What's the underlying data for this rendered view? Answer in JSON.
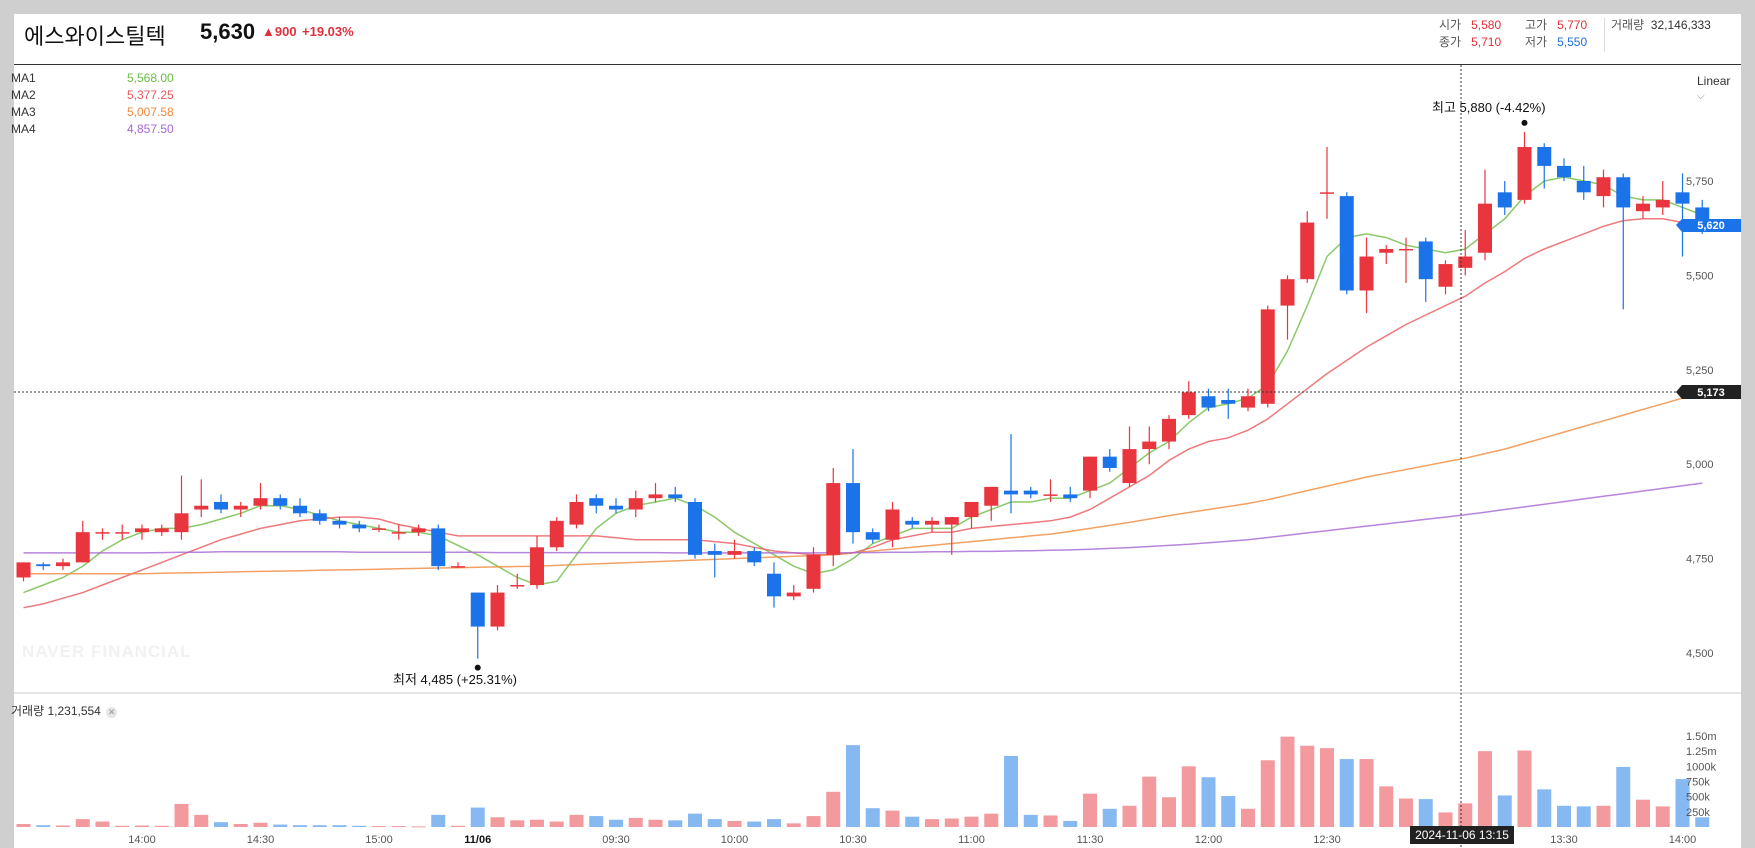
{
  "header": {
    "stock_name": "에스와이스틸텍",
    "price": "5,630",
    "change": "▲900",
    "change_pct": "+19.03%",
    "open_label": "시가",
    "open": "5,580",
    "high_label": "고가",
    "high": "5,770",
    "volume_label": "거래량",
    "volume": "32,146,333",
    "close_label": "종가",
    "close": "5,710",
    "low_label": "저가",
    "low": "5,550"
  },
  "legend": {
    "ma": [
      {
        "name": "MA1",
        "value": "5,568.00",
        "color": "#6dbb45"
      },
      {
        "name": "MA2",
        "value": "5,377.25",
        "color": "#e9575b"
      },
      {
        "name": "MA3",
        "value": "5,007.58",
        "color": "#f08a3c"
      },
      {
        "name": "MA4",
        "value": "4,857.50",
        "color": "#a667d4"
      }
    ]
  },
  "scale_type": "Linear",
  "volume_panel": {
    "label": "거래량",
    "value": "1,231,554"
  },
  "watermark": "NAVER FINANCIAL",
  "annotations": {
    "high": "최고 5,880 (-4.42%)",
    "low": "최저 4,485 (+25.31%)"
  },
  "badges": {
    "last_price": "5,620",
    "crosshair_price": "5,173",
    "crosshair_time": "2024-11-06 13:15"
  },
  "colors": {
    "up": "#e8353e",
    "down": "#1a73e8",
    "up_volume": "#f29a9d",
    "down_volume": "#86b9f2"
  },
  "chart_data": {
    "type": "candlestick",
    "price_axis": {
      "ticks": [
        4500,
        4750,
        5000,
        5250,
        5500,
        5750
      ],
      "tick_labels": [
        "4,500",
        "4,750",
        "5,000",
        "5,250",
        "5,500",
        "5,750"
      ]
    },
    "volume_axis": {
      "ticks": [
        250000,
        500000,
        750000,
        1000000,
        1250000,
        1500000
      ],
      "tick_labels": [
        "250k",
        "500k",
        "750k",
        "1000k",
        "1.25m",
        "1.50m"
      ]
    },
    "time_axis": [
      {
        "i": 6,
        "label": "14:00",
        "bold": false
      },
      {
        "i": 12,
        "label": "14:30",
        "bold": false
      },
      {
        "i": 18,
        "label": "15:00",
        "bold": false
      },
      {
        "i": 23,
        "label": "11/06",
        "bold": true
      },
      {
        "i": 30,
        "label": "09:30",
        "bold": false
      },
      {
        "i": 36,
        "label": "10:00",
        "bold": false
      },
      {
        "i": 42,
        "label": "10:30",
        "bold": false
      },
      {
        "i": 48,
        "label": "11:00",
        "bold": false
      },
      {
        "i": 54,
        "label": "11:30",
        "bold": false
      },
      {
        "i": 60,
        "label": "12:00",
        "bold": false
      },
      {
        "i": 66,
        "label": "12:30",
        "bold": false
      },
      {
        "i": 72,
        "label": "13:00",
        "bold": false
      },
      {
        "i": 78,
        "label": "13:30",
        "bold": false
      },
      {
        "i": 84,
        "label": "14:00",
        "bold": false
      }
    ],
    "candles": [
      [
        4700,
        4740,
        4690,
        4740,
        50000
      ],
      [
        4735,
        4740,
        4720,
        4730,
        30000
      ],
      [
        4730,
        4750,
        4720,
        4740,
        25000
      ],
      [
        4740,
        4850,
        4740,
        4820,
        130000
      ],
      [
        4820,
        4830,
        4800,
        4820,
        90000
      ],
      [
        4820,
        4840,
        4800,
        4820,
        20000
      ],
      [
        4820,
        4840,
        4800,
        4830,
        25000
      ],
      [
        4820,
        4840,
        4810,
        4830,
        20000
      ],
      [
        4820,
        4970,
        4800,
        4870,
        380000
      ],
      [
        4880,
        4960,
        4860,
        4890,
        200000
      ],
      [
        4900,
        4920,
        4870,
        4880,
        80000
      ],
      [
        4880,
        4900,
        4860,
        4890,
        50000
      ],
      [
        4890,
        4950,
        4880,
        4910,
        70000
      ],
      [
        4910,
        4920,
        4880,
        4890,
        40000
      ],
      [
        4890,
        4910,
        4860,
        4870,
        30000
      ],
      [
        4870,
        4880,
        4840,
        4850,
        30000
      ],
      [
        4850,
        4860,
        4830,
        4840,
        30000
      ],
      [
        4840,
        4850,
        4820,
        4830,
        20000
      ],
      [
        4830,
        4840,
        4820,
        4830,
        15000
      ],
      [
        4820,
        4840,
        4800,
        4820,
        15000
      ],
      [
        4820,
        4840,
        4810,
        4830,
        10000
      ],
      [
        4830,
        4840,
        4720,
        4730,
        200000
      ],
      [
        4730,
        4740,
        4725,
        4730,
        20000
      ],
      [
        4660,
        4660,
        4485,
        4570,
        320000
      ],
      [
        4570,
        4680,
        4560,
        4660,
        160000
      ],
      [
        4680,
        4710,
        4670,
        4680,
        110000
      ],
      [
        4680,
        4810,
        4670,
        4780,
        120000
      ],
      [
        4780,
        4860,
        4770,
        4850,
        90000
      ],
      [
        4840,
        4920,
        4830,
        4900,
        200000
      ],
      [
        4910,
        4920,
        4870,
        4890,
        180000
      ],
      [
        4890,
        4910,
        4870,
        4880,
        120000
      ],
      [
        4880,
        4930,
        4860,
        4910,
        150000
      ],
      [
        4910,
        4950,
        4900,
        4920,
        120000
      ],
      [
        4920,
        4940,
        4900,
        4910,
        110000
      ],
      [
        4900,
        4910,
        4750,
        4760,
        220000
      ],
      [
        4770,
        4790,
        4700,
        4760,
        130000
      ],
      [
        4760,
        4800,
        4750,
        4770,
        100000
      ],
      [
        4770,
        4780,
        4730,
        4740,
        90000
      ],
      [
        4710,
        4740,
        4620,
        4650,
        130000
      ],
      [
        4650,
        4680,
        4640,
        4660,
        60000
      ],
      [
        4670,
        4780,
        4660,
        4760,
        180000
      ],
      [
        4760,
        4990,
        4730,
        4950,
        580000
      ],
      [
        4950,
        5040,
        4790,
        4820,
        1350000
      ],
      [
        4820,
        4830,
        4790,
        4800,
        310000
      ],
      [
        4800,
        4900,
        4780,
        4880,
        270000
      ],
      [
        4850,
        4860,
        4830,
        4840,
        170000
      ],
      [
        4840,
        4860,
        4820,
        4850,
        130000
      ],
      [
        4840,
        4860,
        4760,
        4860,
        140000
      ],
      [
        4860,
        4900,
        4830,
        4900,
        170000
      ],
      [
        4890,
        4940,
        4850,
        4940,
        220000
      ],
      [
        4930,
        5080,
        4870,
        4920,
        1170000
      ],
      [
        4930,
        4940,
        4910,
        4920,
        200000
      ],
      [
        4920,
        4960,
        4900,
        4920,
        190000
      ],
      [
        4920,
        4940,
        4900,
        4910,
        100000
      ],
      [
        4930,
        5020,
        4910,
        5020,
        550000
      ],
      [
        5020,
        5040,
        4980,
        4990,
        300000
      ],
      [
        4950,
        5100,
        4940,
        5040,
        350000
      ],
      [
        5040,
        5100,
        5000,
        5060,
        830000
      ],
      [
        5060,
        5130,
        5040,
        5120,
        490000
      ],
      [
        5130,
        5220,
        5120,
        5190,
        1000000
      ],
      [
        5180,
        5200,
        5140,
        5150,
        820000
      ],
      [
        5170,
        5200,
        5120,
        5160,
        510000
      ],
      [
        5150,
        5200,
        5140,
        5180,
        300000
      ],
      [
        5160,
        5420,
        5150,
        5410,
        1100000
      ],
      [
        5420,
        5500,
        5330,
        5490,
        1490000
      ],
      [
        5490,
        5670,
        5480,
        5640,
        1340000
      ],
      [
        5720,
        5840,
        5650,
        5720,
        1300000
      ],
      [
        5710,
        5720,
        5450,
        5460,
        1120000
      ],
      [
        5460,
        5600,
        5400,
        5550,
        1120000
      ],
      [
        5560,
        5580,
        5530,
        5570,
        670000
      ],
      [
        5570,
        5600,
        5480,
        5570,
        470000
      ],
      [
        5590,
        5600,
        5430,
        5490,
        460000
      ],
      [
        5470,
        5540,
        5450,
        5530,
        240000
      ],
      [
        5520,
        5620,
        5500,
        5550,
        390000
      ],
      [
        5560,
        5780,
        5540,
        5690,
        1250000
      ],
      [
        5720,
        5750,
        5660,
        5680,
        520000
      ],
      [
        5700,
        5880,
        5690,
        5840,
        1260000
      ],
      [
        5840,
        5850,
        5730,
        5790,
        620000
      ],
      [
        5790,
        5810,
        5750,
        5760,
        350000
      ],
      [
        5750,
        5790,
        5700,
        5720,
        340000
      ],
      [
        5710,
        5780,
        5680,
        5760,
        350000
      ],
      [
        5760,
        5770,
        5410,
        5680,
        990000
      ],
      [
        5670,
        5710,
        5650,
        5690,
        450000
      ],
      [
        5680,
        5750,
        5660,
        5700,
        340000
      ],
      [
        5720,
        5770,
        5550,
        5690,
        790000
      ],
      [
        5680,
        5700,
        5610,
        5620,
        160000
      ]
    ],
    "ma_series": {
      "MA1": [
        4660,
        4680,
        4700,
        4730,
        4770,
        4800,
        4820,
        4830,
        4830,
        4840,
        4855,
        4870,
        4890,
        4890,
        4880,
        4865,
        4850,
        4840,
        4830,
        4820,
        4820,
        4810,
        4785,
        4760,
        4730,
        4700,
        4680,
        4690,
        4760,
        4830,
        4870,
        4890,
        4900,
        4910,
        4890,
        4860,
        4820,
        4790,
        4760,
        4730,
        4710,
        4720,
        4750,
        4790,
        4810,
        4830,
        4830,
        4830,
        4860,
        4880,
        4900,
        4900,
        4910,
        4910,
        4930,
        4950,
        4990,
        5030,
        5060,
        5110,
        5150,
        5160,
        5175,
        5210,
        5300,
        5420,
        5550,
        5600,
        5610,
        5600,
        5580,
        5570,
        5560,
        5570,
        5610,
        5650,
        5710,
        5750,
        5760,
        5750,
        5740,
        5710,
        5700,
        5700,
        5680,
        5660
      ],
      "MA2": [
        4620,
        4630,
        4645,
        4660,
        4680,
        4700,
        4720,
        4740,
        4760,
        4780,
        4800,
        4815,
        4830,
        4840,
        4850,
        4855,
        4860,
        4860,
        4855,
        4840,
        4830,
        4820,
        4810,
        4810,
        4810,
        4810,
        4810,
        4810,
        4810,
        4810,
        4805,
        4800,
        4800,
        4800,
        4800,
        4795,
        4790,
        4780,
        4770,
        4765,
        4760,
        4760,
        4765,
        4780,
        4800,
        4810,
        4820,
        4820,
        4830,
        4835,
        4840,
        4845,
        4850,
        4860,
        4880,
        4910,
        4940,
        4970,
        5010,
        5040,
        5060,
        5070,
        5090,
        5120,
        5160,
        5200,
        5240,
        5275,
        5310,
        5340,
        5370,
        5395,
        5420,
        5445,
        5480,
        5510,
        5545,
        5570,
        5590,
        5610,
        5630,
        5645,
        5650,
        5650,
        5640,
        5625
      ],
      "MA3": [
        4710,
        4710,
        4710,
        4710,
        4710,
        4710,
        4710,
        4711,
        4712,
        4713,
        4714,
        4715,
        4716,
        4717,
        4718,
        4719,
        4720,
        4721,
        4722,
        4723,
        4724,
        4725,
        4726,
        4727,
        4728,
        4729,
        4730,
        4732,
        4734,
        4736,
        4738,
        4740,
        4742,
        4744,
        4746,
        4748,
        4750,
        4752,
        4754,
        4756,
        4758,
        4760,
        4765,
        4770,
        4775,
        4780,
        4785,
        4790,
        4795,
        4800,
        4805,
        4810,
        4815,
        4822,
        4830,
        4838,
        4846,
        4855,
        4864,
        4872,
        4880,
        4888,
        4896,
        4906,
        4918,
        4930,
        4942,
        4954,
        4966,
        4976,
        4986,
        4996,
        5006,
        5016,
        5028,
        5040,
        5055,
        5070,
        5085,
        5100,
        5115,
        5130,
        5145,
        5160,
        5175,
        5190
      ],
      "MA4": [
        4765,
        4765,
        4765,
        4765,
        4765,
        4765,
        4765,
        4766,
        4767,
        4767,
        4768,
        4768,
        4768,
        4768,
        4768,
        4768,
        4768,
        4767,
        4767,
        4767,
        4767,
        4767,
        4767,
        4767,
        4766,
        4766,
        4766,
        4766,
        4766,
        4766,
        4766,
        4766,
        4766,
        4765,
        4765,
        4765,
        4765,
        4765,
        4765,
        4765,
        4765,
        4765,
        4766,
        4766,
        4767,
        4767,
        4768,
        4768,
        4769,
        4769,
        4770,
        4771,
        4772,
        4773,
        4775,
        4777,
        4779,
        4782,
        4785,
        4788,
        4792,
        4796,
        4800,
        4806,
        4812,
        4818,
        4824,
        4830,
        4836,
        4842,
        4848,
        4854,
        4860,
        4866,
        4873,
        4880,
        4887,
        4894,
        4901,
        4908,
        4915,
        4922,
        4929,
        4936,
        4943,
        4950
      ]
    }
  }
}
